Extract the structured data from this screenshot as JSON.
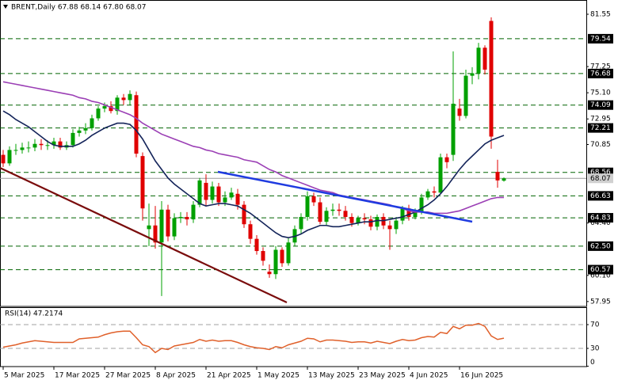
{
  "chart_data": [
    {
      "type": "candlestick",
      "title": "BRENT,Daily 67.88 68.14 67.80 68.07",
      "categories": [
        "5 Mar 2025",
        null,
        null,
        null,
        null,
        null,
        null,
        null,
        "17 Mar 2025",
        null,
        null,
        null,
        null,
        null,
        null,
        null,
        "27 Mar 2025",
        null,
        null,
        null,
        null,
        null,
        null,
        null,
        "8 Apr 2025",
        null,
        null,
        null,
        null,
        null,
        null,
        null,
        "21 Apr 2025",
        null,
        null,
        null,
        null,
        null,
        null,
        null,
        "1 May 2025",
        null,
        null,
        null,
        null,
        null,
        null,
        null,
        "13 May 2025",
        null,
        null,
        null,
        null,
        null,
        null,
        null,
        "23 May 2025",
        null,
        null,
        null,
        null,
        null,
        null,
        null,
        "4 Jun 2025",
        null,
        null,
        null,
        null,
        null,
        null,
        null,
        "16 Jun 2025",
        null,
        null,
        null,
        null,
        null,
        null,
        null
      ],
      "open": [
        70.0,
        69.3,
        70.4,
        70.4,
        70.6,
        70.6,
        70.9,
        70.8,
        70.8,
        71.1,
        70.6,
        70.8,
        71.8,
        72.0,
        72.2,
        73.0,
        73.8,
        74.0,
        73.6,
        74.7,
        74.5,
        74.9,
        69.9,
        63.9,
        64.2,
        62.8,
        65.5,
        63.3,
        64.8,
        64.9,
        64.7,
        65.9,
        67.7,
        66.3,
        67.4,
        66.1,
        66.5,
        66.8,
        65.9,
        64.3,
        63.1,
        62.1,
        60.4,
        60.2,
        62.2,
        61.1,
        62.8,
        63.9,
        64.9,
        66.6,
        66.1,
        64.5,
        65.4,
        65.5,
        65.4,
        64.9,
        64.4,
        64.8,
        64.7,
        64.1,
        64.9,
        64.2,
        63.9,
        64.6,
        65.6,
        64.9,
        65.3,
        66.5,
        67.0,
        66.9,
        69.8,
        70.0,
        73.8,
        73.2,
        76.5,
        76.7,
        78.8,
        81.0,
        68.6,
        67.88
      ],
      "high": [
        70.4,
        70.7,
        70.9,
        71.0,
        71.1,
        71.3,
        71.3,
        71.2,
        71.4,
        71.4,
        71.1,
        72.1,
        72.3,
        72.6,
        73.3,
        74.0,
        74.3,
        74.4,
        74.9,
        75.0,
        75.3,
        75.2,
        70.2,
        66.0,
        65.8,
        66.2,
        65.9,
        65.2,
        65.3,
        65.3,
        66.2,
        68.1,
        68.4,
        67.8,
        67.7,
        67.0,
        67.3,
        67.2,
        66.2,
        64.6,
        63.4,
        62.4,
        61.0,
        62.5,
        62.4,
        63.2,
        64.2,
        65.2,
        67.0,
        66.9,
        66.5,
        65.7,
        66.0,
        66.0,
        65.8,
        65.2,
        65.0,
        65.2,
        65.0,
        65.1,
        65.2,
        64.6,
        64.9,
        65.8,
        65.9,
        65.6,
        66.8,
        67.2,
        67.4,
        70.1,
        70.1,
        78.5,
        74.6,
        77.0,
        77.2,
        79.2,
        79.0,
        81.3,
        69.6,
        68.14
      ],
      "low": [
        69.0,
        69.1,
        70.0,
        70.1,
        70.2,
        70.3,
        70.4,
        70.4,
        70.5,
        70.4,
        70.4,
        70.6,
        71.5,
        71.7,
        72.0,
        72.8,
        73.5,
        73.4,
        73.3,
        74.1,
        74.1,
        69.8,
        64.6,
        62.5,
        62.3,
        58.4,
        62.9,
        63.0,
        64.4,
        64.2,
        64.4,
        65.7,
        65.8,
        66.0,
        65.8,
        65.8,
        66.3,
        65.5,
        64.0,
        62.7,
        61.8,
        60.9,
        59.9,
        59.8,
        60.8,
        60.9,
        62.5,
        63.5,
        64.6,
        65.8,
        64.3,
        64.2,
        65.0,
        65.0,
        64.6,
        64.1,
        64.2,
        64.3,
        63.8,
        63.8,
        63.9,
        62.2,
        63.5,
        64.3,
        64.6,
        64.7,
        65.1,
        66.3,
        66.5,
        66.8,
        68.9,
        69.5,
        72.8,
        73.0,
        75.8,
        76.2,
        76.6,
        70.5,
        67.3,
        67.8
      ],
      "close": [
        69.3,
        70.4,
        70.4,
        70.6,
        70.6,
        70.9,
        70.8,
        70.8,
        71.1,
        70.6,
        70.8,
        71.8,
        72.0,
        72.2,
        73.0,
        73.8,
        74.0,
        73.6,
        74.7,
        74.5,
        75.0,
        70.1,
        65.6,
        64.2,
        62.8,
        65.5,
        63.3,
        64.8,
        64.9,
        64.7,
        65.9,
        67.9,
        66.3,
        67.4,
        66.1,
        66.5,
        66.9,
        65.9,
        64.3,
        63.1,
        62.1,
        61.3,
        60.2,
        62.2,
        61.1,
        62.8,
        63.9,
        64.9,
        66.6,
        66.1,
        64.5,
        65.4,
        65.5,
        65.4,
        64.9,
        64.4,
        64.8,
        64.7,
        64.1,
        64.9,
        64.2,
        63.9,
        64.6,
        65.6,
        64.9,
        65.3,
        66.5,
        67.0,
        66.9,
        69.8,
        69.4,
        74.2,
        73.2,
        76.5,
        76.7,
        78.8,
        77.0,
        71.5,
        67.9,
        68.07
      ],
      "up_color": "#00a000",
      "down_color": "#e00000",
      "moving_averages": [
        {
          "color": "#14245a",
          "values": [
            73.6,
            73.3,
            72.9,
            72.6,
            72.3,
            71.9,
            71.5,
            71.1,
            70.8,
            70.7,
            70.7,
            70.7,
            70.9,
            71.2,
            71.6,
            71.9,
            72.2,
            72.4,
            72.6,
            72.6,
            72.5,
            72.0,
            71.3,
            70.4,
            69.5,
            68.8,
            68.1,
            67.6,
            67.2,
            66.8,
            66.4,
            66.0,
            65.8,
            65.9,
            66.0,
            66.0,
            65.9,
            65.8,
            65.5,
            65.2,
            64.8,
            64.4,
            64.0,
            63.6,
            63.3,
            63.2,
            63.3,
            63.5,
            63.8,
            64.0,
            64.2,
            64.2,
            64.1,
            64.1,
            64.2,
            64.3,
            64.4,
            64.5,
            64.5,
            64.6,
            64.6,
            64.7,
            64.8,
            64.9,
            65.1,
            65.3,
            65.6,
            65.9,
            66.3,
            66.8,
            67.4,
            68.1,
            68.8,
            69.4,
            69.9,
            70.4,
            70.9,
            71.2,
            71.4,
            71.6
          ]
        },
        {
          "color": "#9b3fb5",
          "values": [
            76.0,
            75.9,
            75.8,
            75.7,
            75.6,
            75.5,
            75.4,
            75.3,
            75.2,
            75.1,
            75.0,
            74.9,
            74.7,
            74.6,
            74.4,
            74.3,
            74.1,
            73.9,
            73.7,
            73.5,
            73.3,
            73.0,
            72.6,
            72.3,
            72.0,
            71.7,
            71.5,
            71.3,
            71.1,
            70.9,
            70.7,
            70.6,
            70.4,
            70.3,
            70.1,
            70.0,
            69.9,
            69.8,
            69.6,
            69.5,
            69.4,
            69.1,
            68.8,
            68.6,
            68.3,
            68.1,
            67.9,
            67.7,
            67.5,
            67.3,
            67.1,
            67.0,
            66.9,
            66.7,
            66.6,
            66.5,
            66.4,
            66.3,
            66.2,
            66.1,
            66.0,
            65.9,
            65.7,
            65.6,
            65.4,
            65.3,
            65.3,
            65.3,
            65.2,
            65.2,
            65.2,
            65.3,
            65.4,
            65.6,
            65.8,
            66.0,
            66.2,
            66.4,
            66.5,
            66.5
          ]
        }
      ],
      "ylim": [
        57.55,
        82.72
      ],
      "yticks": [
        81.55,
        77.25,
        {
          "value": 75.1,
          "label": "75.10"
        },
        72.95,
        70.85,
        {
          "value": 64.4,
          "label": "64.40"
        },
        {
          "value": 60.1,
          "label": "60.10"
        },
        57.95
      ],
      "levels": [
        79.54,
        76.68,
        74.09,
        72.21,
        68.56,
        66.63,
        64.83,
        {
          "value": 62.5,
          "label": "62.50"
        },
        60.57
      ],
      "level_color": "#006400",
      "last_price": 68.07
    },
    {
      "type": "line",
      "title": "RSI(14) 47.2174",
      "color": "#e0602a",
      "values": [
        32,
        34,
        36,
        39,
        41,
        43,
        42,
        41,
        40,
        40,
        40,
        40,
        46,
        47,
        48,
        49,
        53,
        56,
        58,
        59,
        59,
        48,
        36,
        33,
        23,
        30,
        28,
        34,
        36,
        38,
        40,
        45,
        42,
        44,
        42,
        43,
        43,
        40,
        36,
        33,
        31,
        30,
        28,
        33,
        31,
        36,
        39,
        42,
        47,
        46,
        41,
        44,
        44,
        43,
        42,
        40,
        41,
        41,
        39,
        42,
        40,
        38,
        42,
        45,
        43,
        44,
        48,
        50,
        49,
        57,
        55,
        67,
        63,
        69,
        69,
        72,
        67,
        51,
        45,
        47.2
      ],
      "ylim": [
        0,
        100
      ],
      "yticks": [
        70,
        30,
        0
      ],
      "levels": [
        70,
        30
      ],
      "level_color": "#a0a0a0"
    }
  ]
}
